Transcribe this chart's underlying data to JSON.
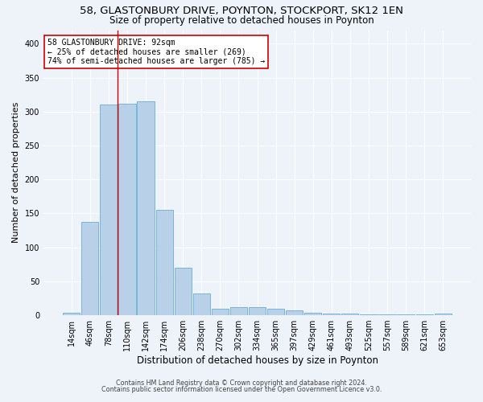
{
  "title1": "58, GLASTONBURY DRIVE, POYNTON, STOCKPORT, SK12 1EN",
  "title2": "Size of property relative to detached houses in Poynton",
  "xlabel": "Distribution of detached houses by size in Poynton",
  "ylabel": "Number of detached properties",
  "categories": [
    "14sqm",
    "46sqm",
    "78sqm",
    "110sqm",
    "142sqm",
    "174sqm",
    "206sqm",
    "238sqm",
    "270sqm",
    "302sqm",
    "334sqm",
    "365sqm",
    "397sqm",
    "429sqm",
    "461sqm",
    "493sqm",
    "525sqm",
    "557sqm",
    "589sqm",
    "621sqm",
    "653sqm"
  ],
  "values": [
    4,
    137,
    310,
    312,
    315,
    155,
    70,
    32,
    10,
    12,
    12,
    10,
    7,
    4,
    3,
    2,
    1,
    1,
    1,
    1,
    3
  ],
  "bar_color": "#b8d0e8",
  "bar_edge_color": "#6aaed6",
  "red_line_x": 2.5,
  "annotation_line1": "58 GLASTONBURY DRIVE: 92sqm",
  "annotation_line2": "← 25% of detached houses are smaller (269)",
  "annotation_line3": "74% of semi-detached houses are larger (785) →",
  "annotation_box_color": "#ffffff",
  "annotation_box_edge": "#cc0000",
  "footnote1": "Contains HM Land Registry data © Crown copyright and database right 2024.",
  "footnote2": "Contains public sector information licensed under the Open Government Licence v3.0.",
  "background_color": "#eef2f9",
  "plot_bg_color": "#eef2f9",
  "ylim": [
    0,
    420
  ],
  "yticks": [
    0,
    50,
    100,
    150,
    200,
    250,
    300,
    350,
    400
  ],
  "grid_color": "#ffffff",
  "title1_fontsize": 9.5,
  "title2_fontsize": 8.5,
  "xlabel_fontsize": 8.5,
  "ylabel_fontsize": 8,
  "tick_fontsize": 7,
  "annotation_fontsize": 7,
  "footnote_fontsize": 5.8
}
